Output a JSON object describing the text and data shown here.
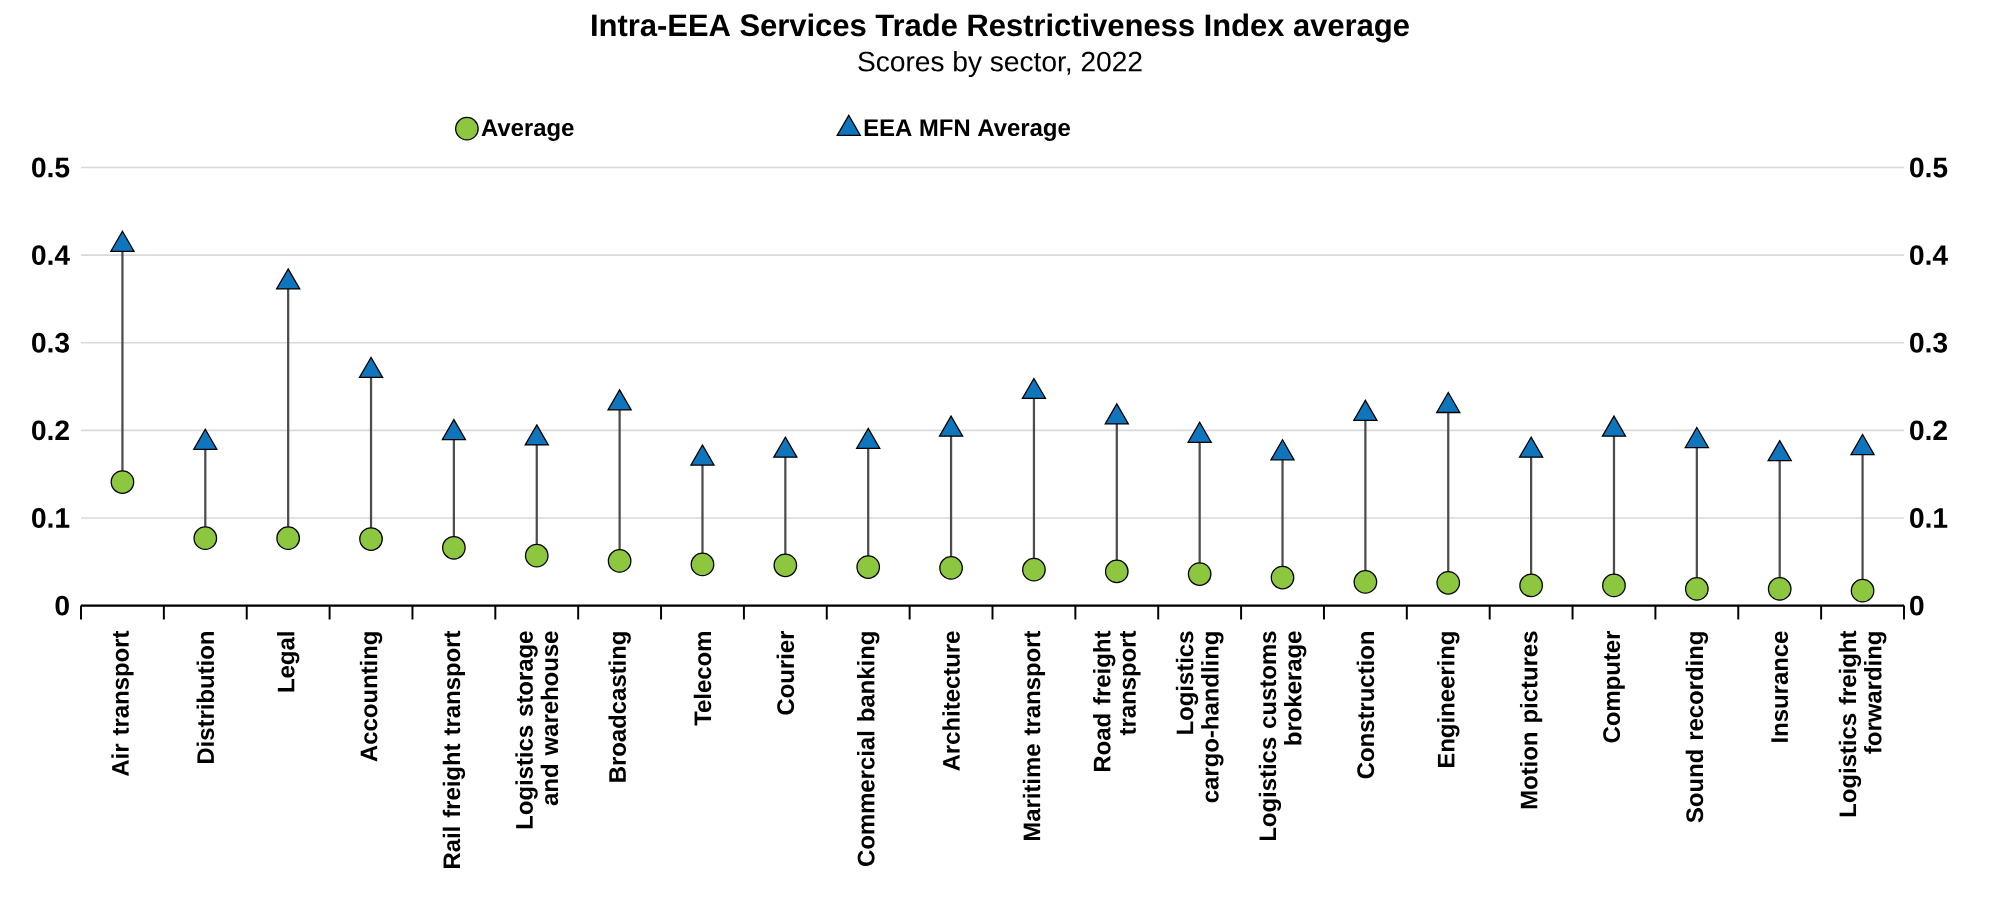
{
  "chart_data": {
    "type": "lollipop",
    "title": "Intra-EEA Services Trade Restrictiveness Index average",
    "subtitle": "Scores by sector, 2022",
    "categories": [
      "Air transport",
      "Distribution",
      "Legal",
      "Accounting",
      "Rail freight transport",
      "Logistics storage and warehouse",
      "Broadcasting",
      "Telecom",
      "Courier",
      "Commercial banking",
      "Architecture",
      "Maritime transport",
      "Road freight transport",
      "Logistics cargo-handling",
      "Logistics customs brokerage",
      "Construction",
      "Engineering",
      "Motion pictures",
      "Computer",
      "Sound recording",
      "Insurance",
      "Logistics freight forwarding"
    ],
    "series": [
      {
        "name": "Average",
        "type": "scatter",
        "marker": "circle",
        "color": "#8dc63f",
        "values": [
          0.141,
          0.077,
          0.077,
          0.076,
          0.066,
          0.057,
          0.051,
          0.047,
          0.046,
          0.044,
          0.043,
          0.041,
          0.039,
          0.036,
          0.032,
          0.027,
          0.026,
          0.023,
          0.023,
          0.019,
          0.019,
          0.017
        ]
      },
      {
        "name": "EEA MFN Average",
        "marker": "triangle",
        "color": "#0f75bc",
        "values": [
          0.412,
          0.186,
          0.369,
          0.268,
          0.197,
          0.191,
          0.231,
          0.168,
          0.177,
          0.187,
          0.201,
          0.244,
          0.215,
          0.194,
          0.174,
          0.219,
          0.228,
          0.177,
          0.201,
          0.188,
          0.173,
          0.18
        ]
      }
    ],
    "ylim": [
      0,
      0.5
    ],
    "yticks": [
      0,
      0.1,
      0.2,
      0.3,
      0.4,
      0.5
    ],
    "y2lim": [
      0,
      0.5
    ],
    "y2ticks": [
      0,
      0.1,
      0.2,
      0.3,
      0.4,
      0.5
    ],
    "grid": "y",
    "legend": "top"
  }
}
